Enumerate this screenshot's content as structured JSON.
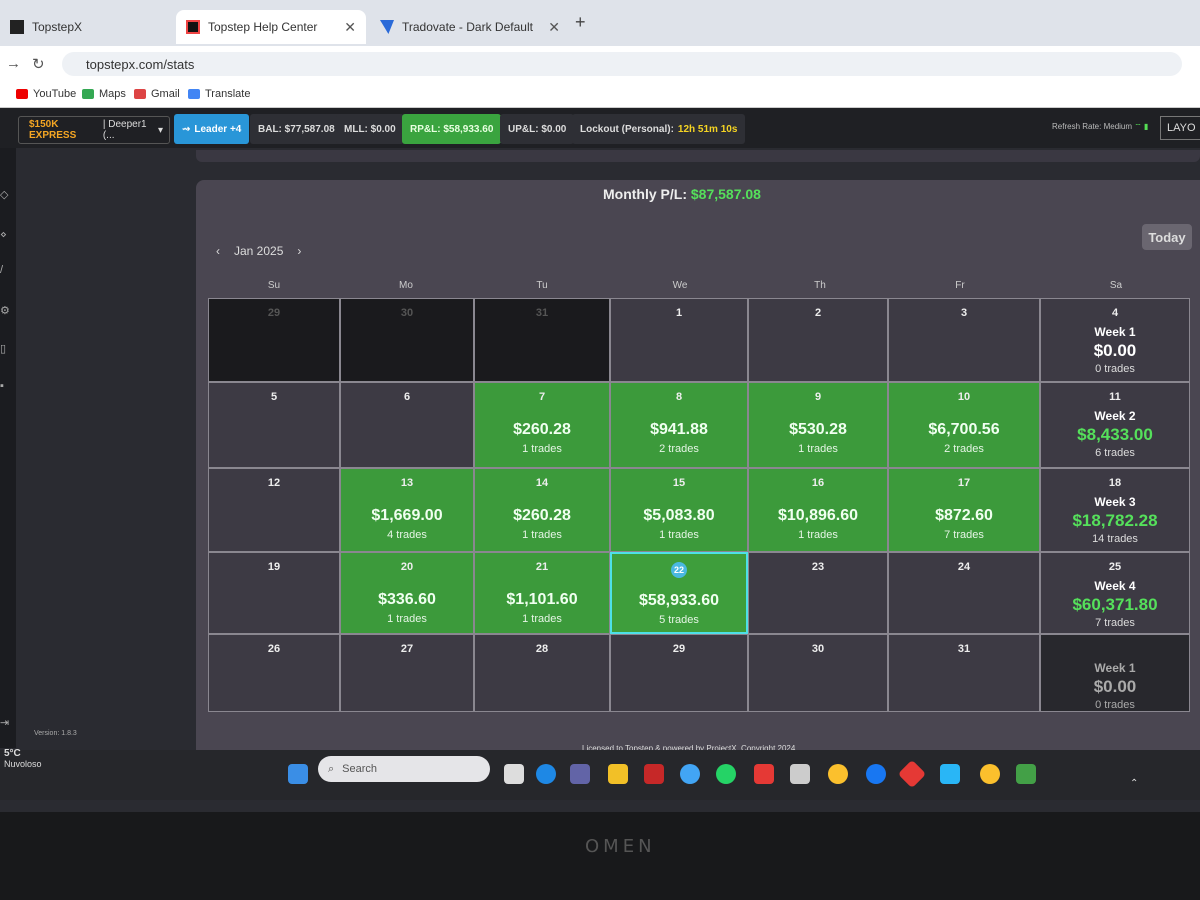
{
  "browser": {
    "tabs": [
      {
        "label": "TopstepX"
      },
      {
        "label": "Topstep Help Center"
      },
      {
        "label": "Tradovate - Dark Default"
      }
    ],
    "url": "topstepx.com/stats",
    "bookmarks": [
      "YouTube",
      "Maps",
      "Gmail",
      "Translate"
    ]
  },
  "appbar": {
    "account_tag": "$150K EXPRESS",
    "account_name": "| Deeper1 (...",
    "leader": "Leader +4",
    "bal": "BAL: $77,587.08",
    "mll": "MLL: $0.00",
    "rpl": "RP&L: $58,933.60",
    "upl": "UP&L: $0.00",
    "lockout_label": "Lockout (Personal):",
    "lockout_value": "12h 51m 10s",
    "refresh_rate": "Refresh Rate: Medium",
    "layout": "LAYO"
  },
  "stats": {
    "monthly_label": "Monthly P/L:",
    "monthly_value": "$87,587.08",
    "today_button": "Today",
    "month": "Jan 2025",
    "weekdays": [
      "Su",
      "Mo",
      "Tu",
      "We",
      "Th",
      "Fr",
      "Sa"
    ]
  },
  "calendar": {
    "rows": [
      [
        {
          "day": "29",
          "state": "out"
        },
        {
          "day": "30",
          "state": "out"
        },
        {
          "day": "31",
          "state": "out"
        },
        {
          "day": "1",
          "state": "empty"
        },
        {
          "day": "2",
          "state": "empty"
        },
        {
          "day": "3",
          "state": "empty"
        },
        {
          "day": "4",
          "state": "week",
          "week": "Week 1",
          "amount": "$0.00",
          "trades": "0 trades"
        }
      ],
      [
        {
          "day": "5",
          "state": "empty"
        },
        {
          "day": "6",
          "state": "empty"
        },
        {
          "day": "7",
          "state": "pos",
          "amount": "$260.28",
          "trades": "1 trades"
        },
        {
          "day": "8",
          "state": "pos",
          "amount": "$941.88",
          "trades": "2 trades"
        },
        {
          "day": "9",
          "state": "pos",
          "amount": "$530.28",
          "trades": "1 trades"
        },
        {
          "day": "10",
          "state": "pos",
          "amount": "$6,700.56",
          "trades": "2 trades"
        },
        {
          "day": "11",
          "state": "week",
          "week": "Week 2",
          "amount": "$8,433.00",
          "trades": "6 trades"
        }
      ],
      [
        {
          "day": "12",
          "state": "empty"
        },
        {
          "day": "13",
          "state": "pos",
          "amount": "$1,669.00",
          "trades": "4 trades"
        },
        {
          "day": "14",
          "state": "pos",
          "amount": "$260.28",
          "trades": "1 trades"
        },
        {
          "day": "15",
          "state": "pos",
          "amount": "$5,083.80",
          "trades": "1 trades"
        },
        {
          "day": "16",
          "state": "pos",
          "amount": "$10,896.60",
          "trades": "1 trades"
        },
        {
          "day": "17",
          "state": "pos",
          "amount": "$872.60",
          "trades": "7 trades"
        },
        {
          "day": "18",
          "state": "week",
          "week": "Week 3",
          "amount": "$18,782.28",
          "trades": "14 trades"
        }
      ],
      [
        {
          "day": "19",
          "state": "empty"
        },
        {
          "day": "20",
          "state": "pos",
          "amount": "$336.60",
          "trades": "1 trades"
        },
        {
          "day": "21",
          "state": "pos",
          "amount": "$1,101.60",
          "trades": "1 trades"
        },
        {
          "day": "22",
          "state": "sel",
          "amount": "$58,933.60",
          "trades": "5 trades"
        },
        {
          "day": "23",
          "state": "empty"
        },
        {
          "day": "24",
          "state": "empty"
        },
        {
          "day": "25",
          "state": "week",
          "week": "Week 4",
          "amount": "$60,371.80",
          "trades": "7 trades"
        }
      ],
      [
        {
          "day": "26",
          "state": "empty"
        },
        {
          "day": "27",
          "state": "empty"
        },
        {
          "day": "28",
          "state": "empty"
        },
        {
          "day": "29",
          "state": "empty"
        },
        {
          "day": "30",
          "state": "empty"
        },
        {
          "day": "31",
          "state": "empty"
        },
        {
          "day": "",
          "state": "weekdim",
          "week": "Week 1",
          "amount": "$0.00",
          "trades": "0 trades"
        }
      ]
    ]
  },
  "footer": {
    "version": "Version: 1.8.3",
    "license": "Licensed to Topstep & powered by ProjectX. Copyright 2024"
  },
  "taskbar": {
    "weather_temp": "5°C",
    "weather_desc": "Nuvoloso",
    "search_placeholder": "Search"
  },
  "bezel": {
    "brand": "OMEN"
  }
}
